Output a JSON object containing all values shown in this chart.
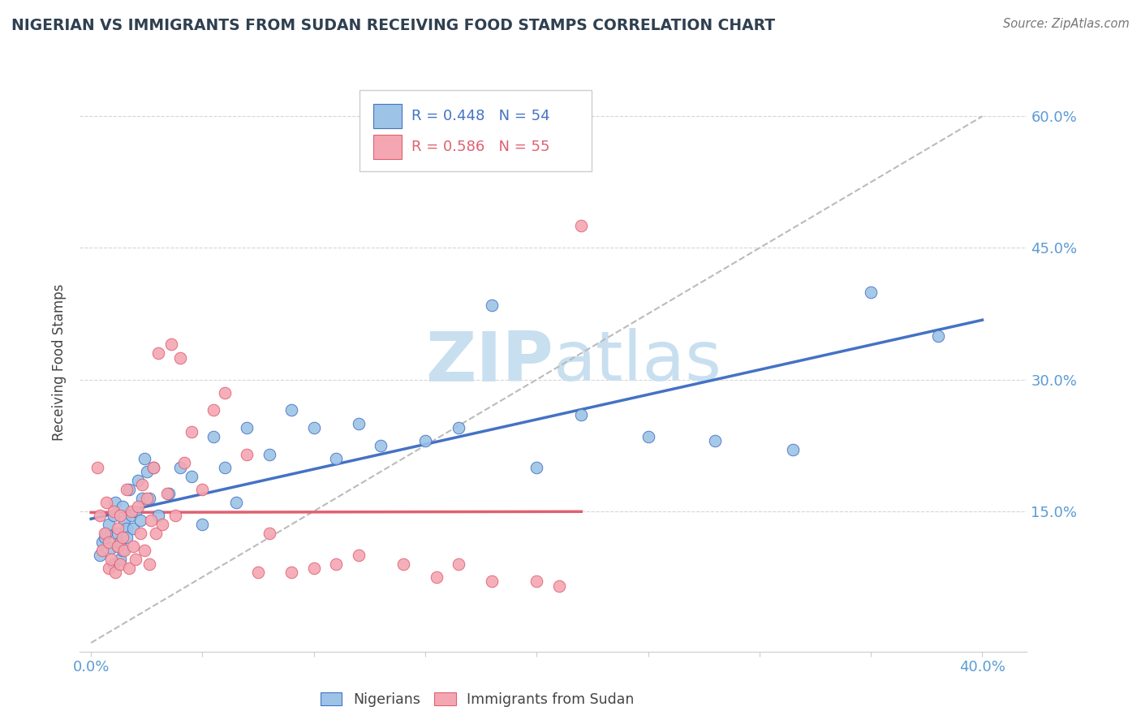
{
  "title": "NIGERIAN VS IMMIGRANTS FROM SUDAN RECEIVING FOOD STAMPS CORRELATION CHART",
  "source": "Source: ZipAtlas.com",
  "ylabel": "Receiving Food Stamps",
  "y_ticks": [
    0.0,
    0.15,
    0.3,
    0.45,
    0.6
  ],
  "y_tick_labels": [
    "",
    "15.0%",
    "30.0%",
    "45.0%",
    "60.0%"
  ],
  "x_ticks": [
    0.0,
    0.05,
    0.1,
    0.15,
    0.2,
    0.25,
    0.3,
    0.35,
    0.4
  ],
  "xlim": [
    -0.005,
    0.42
  ],
  "ylim": [
    -0.01,
    0.65
  ],
  "blue_R": "R = 0.448",
  "blue_N": "N = 54",
  "pink_R": "R = 0.586",
  "pink_N": "N = 55",
  "legend_label_blue": "Nigerians",
  "legend_label_pink": "Immigrants from Sudan",
  "blue_color": "#9DC3E6",
  "pink_color": "#F4A7B3",
  "blue_line_color": "#4472C4",
  "pink_line_color": "#E06070",
  "blue_stat_color": "#4472C4",
  "pink_stat_color": "#E06070",
  "title_color": "#2F4050",
  "axis_color": "#5B9BD5",
  "grid_color": "#CCCCCC",
  "blue_scatter_x": [
    0.004,
    0.005,
    0.006,
    0.007,
    0.008,
    0.009,
    0.01,
    0.01,
    0.011,
    0.012,
    0.012,
    0.013,
    0.013,
    0.014,
    0.014,
    0.015,
    0.016,
    0.016,
    0.017,
    0.018,
    0.019,
    0.02,
    0.021,
    0.022,
    0.023,
    0.024,
    0.025,
    0.026,
    0.028,
    0.03,
    0.035,
    0.04,
    0.045,
    0.05,
    0.055,
    0.06,
    0.065,
    0.07,
    0.08,
    0.09,
    0.1,
    0.11,
    0.12,
    0.13,
    0.15,
    0.165,
    0.18,
    0.2,
    0.22,
    0.25,
    0.28,
    0.315,
    0.35,
    0.38
  ],
  "blue_scatter_y": [
    0.1,
    0.115,
    0.12,
    0.125,
    0.135,
    0.108,
    0.145,
    0.09,
    0.16,
    0.11,
    0.125,
    0.115,
    0.095,
    0.155,
    0.105,
    0.14,
    0.13,
    0.12,
    0.175,
    0.145,
    0.13,
    0.15,
    0.185,
    0.14,
    0.165,
    0.21,
    0.195,
    0.165,
    0.2,
    0.145,
    0.17,
    0.2,
    0.19,
    0.135,
    0.235,
    0.2,
    0.16,
    0.245,
    0.215,
    0.265,
    0.245,
    0.21,
    0.25,
    0.225,
    0.23,
    0.245,
    0.385,
    0.2,
    0.26,
    0.235,
    0.23,
    0.22,
    0.4,
    0.35
  ],
  "pink_scatter_x": [
    0.003,
    0.004,
    0.005,
    0.006,
    0.007,
    0.008,
    0.008,
    0.009,
    0.01,
    0.011,
    0.012,
    0.012,
    0.013,
    0.013,
    0.014,
    0.015,
    0.016,
    0.017,
    0.018,
    0.019,
    0.02,
    0.021,
    0.022,
    0.023,
    0.024,
    0.025,
    0.026,
    0.027,
    0.028,
    0.029,
    0.03,
    0.032,
    0.034,
    0.036,
    0.038,
    0.04,
    0.042,
    0.045,
    0.05,
    0.055,
    0.06,
    0.07,
    0.075,
    0.08,
    0.09,
    0.1,
    0.11,
    0.12,
    0.14,
    0.155,
    0.165,
    0.18,
    0.2,
    0.21,
    0.22
  ],
  "pink_scatter_y": [
    0.2,
    0.145,
    0.105,
    0.125,
    0.16,
    0.085,
    0.115,
    0.095,
    0.15,
    0.08,
    0.11,
    0.13,
    0.145,
    0.09,
    0.12,
    0.105,
    0.175,
    0.085,
    0.15,
    0.11,
    0.095,
    0.155,
    0.125,
    0.18,
    0.105,
    0.165,
    0.09,
    0.14,
    0.2,
    0.125,
    0.33,
    0.135,
    0.17,
    0.34,
    0.145,
    0.325,
    0.205,
    0.24,
    0.175,
    0.265,
    0.285,
    0.215,
    0.08,
    0.125,
    0.08,
    0.085,
    0.09,
    0.1,
    0.09,
    0.075,
    0.09,
    0.07,
    0.07,
    0.065,
    0.475
  ]
}
